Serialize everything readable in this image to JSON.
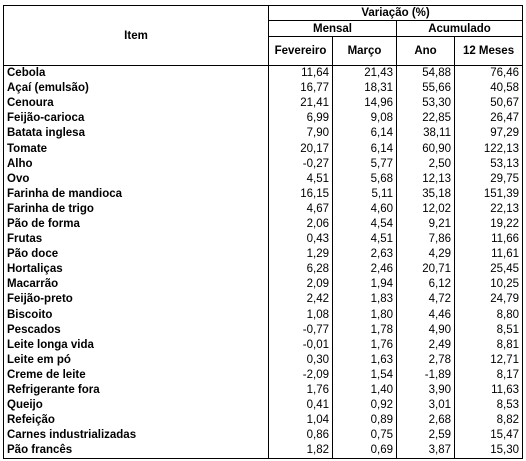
{
  "table": {
    "header": {
      "item": "Item",
      "group": "Variação (%)",
      "subgroups": [
        "Mensal",
        "Acumulado"
      ],
      "columns": [
        "Fevereiro",
        "Março",
        "Ano",
        "12 Meses"
      ]
    },
    "rows": [
      [
        "Cebola",
        "11,64",
        "21,43",
        "54,88",
        "76,46"
      ],
      [
        "Açaí (emulsão)",
        "16,77",
        "18,31",
        "55,66",
        "40,58"
      ],
      [
        "Cenoura",
        "21,41",
        "14,96",
        "53,30",
        "50,67"
      ],
      [
        "Feijão-carioca",
        "6,99",
        "9,08",
        "22,85",
        "26,47"
      ],
      [
        "Batata inglesa",
        "7,90",
        "6,14",
        "38,11",
        "97,29"
      ],
      [
        "Tomate",
        "20,17",
        "6,14",
        "60,90",
        "122,13"
      ],
      [
        "Alho",
        "-0,27",
        "5,77",
        "2,50",
        "53,13"
      ],
      [
        "Ovo",
        "4,51",
        "5,68",
        "12,13",
        "29,75"
      ],
      [
        "Farinha de mandioca",
        "16,15",
        "5,11",
        "35,18",
        "151,39"
      ],
      [
        "Farinha de trigo",
        "4,67",
        "4,60",
        "12,02",
        "22,13"
      ],
      [
        "Pão de forma",
        "2,06",
        "4,54",
        "9,21",
        "19,22"
      ],
      [
        "Frutas",
        "0,43",
        "4,51",
        "7,86",
        "11,66"
      ],
      [
        "Pão doce",
        "1,29",
        "2,63",
        "4,29",
        "11,61"
      ],
      [
        "Hortaliças",
        "6,28",
        "2,46",
        "20,71",
        "25,45"
      ],
      [
        "Macarrão",
        "2,09",
        "1,94",
        "6,12",
        "10,25"
      ],
      [
        "Feijão-preto",
        "2,42",
        "1,83",
        "4,72",
        "24,79"
      ],
      [
        "Biscoito",
        "1,08",
        "1,80",
        "4,46",
        "8,80"
      ],
      [
        "Pescados",
        "-0,77",
        "1,78",
        "4,90",
        "8,51"
      ],
      [
        "Leite longa vida",
        "-0,01",
        "1,76",
        "2,49",
        "8,81"
      ],
      [
        "Leite em pó",
        "0,30",
        "1,63",
        "2,78",
        "12,71"
      ],
      [
        "Creme de leite",
        "-2,09",
        "1,54",
        "-1,89",
        "8,17"
      ],
      [
        "Refrigerante fora",
        "1,76",
        "1,40",
        "3,90",
        "11,63"
      ],
      [
        "Queijo",
        "0,41",
        "0,92",
        "3,01",
        "8,53"
      ],
      [
        "Refeição",
        "1,04",
        "0,89",
        "2,68",
        "8,82"
      ],
      [
        "Carnes industrializadas",
        "0,86",
        "0,75",
        "2,59",
        "15,47"
      ],
      [
        "Pão francês",
        "1,82",
        "0,69",
        "3,87",
        "15,30"
      ]
    ]
  }
}
